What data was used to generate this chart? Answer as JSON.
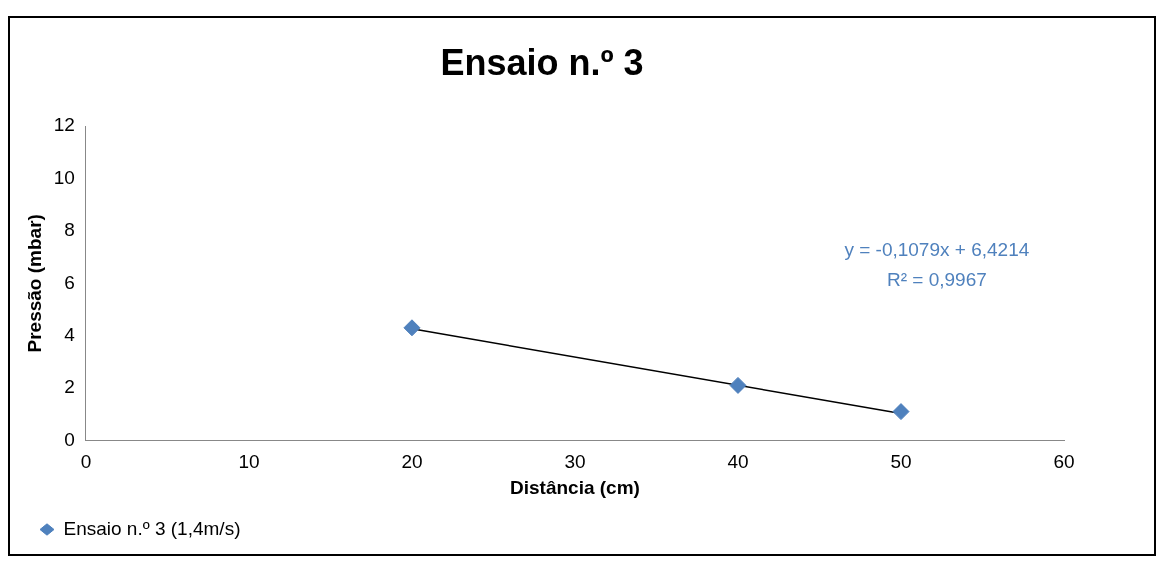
{
  "chart_data": {
    "type": "scatter",
    "title": "Ensaio n.º 3",
    "xlabel": "Distância (cm)",
    "ylabel": "Pressão (mbar)",
    "series": [
      {
        "name": "Ensaio n.º 3 (1,4m/s)",
        "color": "#4f81bd",
        "x": [
          20,
          40,
          50
        ],
        "values": [
          4.3,
          2.1,
          1.1
        ],
        "marker": "diamond"
      },
      {
        "type": "line",
        "color": "#000000",
        "x": [
          20,
          50
        ],
        "values": [
          4.26,
          1.03
        ],
        "marker": "none"
      }
    ],
    "xlim": [
      0,
      60
    ],
    "xticks": [
      0,
      10,
      20,
      30,
      40,
      50,
      60
    ],
    "ylim": [
      0,
      12
    ],
    "yticks": [
      0,
      2,
      4,
      6,
      8,
      10,
      12
    ],
    "grid": false,
    "legend": "bottom left",
    "annotations": [
      "y = -0,1079x + 6,4214\nR² = 0,9967"
    ]
  }
}
